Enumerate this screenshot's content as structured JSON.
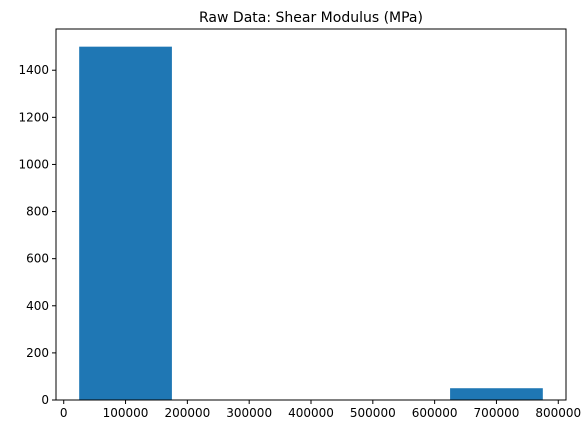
{
  "chart_data": {
    "type": "bar",
    "title": "Raw Data: Shear Modulus (MPa)",
    "xlabel": "",
    "ylabel": "",
    "bars": [
      {
        "x_start": 25000,
        "x_end": 175000,
        "value": 1500
      },
      {
        "x_start": 175000,
        "x_end": 325000,
        "value": 0
      },
      {
        "x_start": 325000,
        "x_end": 475000,
        "value": 0
      },
      {
        "x_start": 475000,
        "x_end": 625000,
        "value": 0
      },
      {
        "x_start": 625000,
        "x_end": 775000,
        "value": 50
      }
    ],
    "xlim": [
      -12500,
      812500
    ],
    "ylim": [
      0,
      1575
    ],
    "x_ticks": [
      0,
      100000,
      200000,
      300000,
      400000,
      500000,
      600000,
      700000,
      800000
    ],
    "y_ticks": [
      0,
      200,
      400,
      600,
      800,
      1000,
      1200,
      1400
    ],
    "bar_color": "#1f77b4",
    "grid": false,
    "legend": "none"
  }
}
